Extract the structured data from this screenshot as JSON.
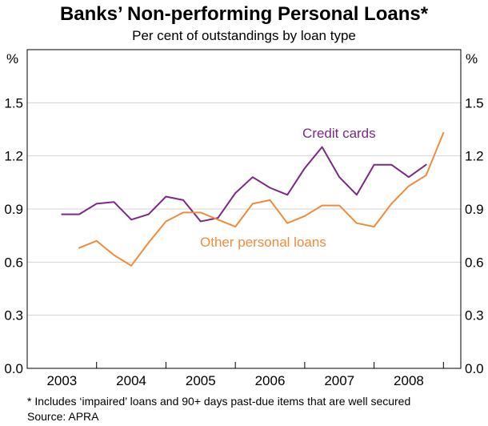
{
  "title": "Banks’ Non-performing Personal Loans*",
  "subtitle": "Per cent of outstandings by loan type",
  "footnote": "*   Includes ‘impaired’ loans and 90+ days past-due items that are well secured",
  "source": "Source: APRA",
  "colors": {
    "credit_cards": "#7b2a83",
    "other_personal_loans": "#ef8c3c",
    "grid": "#d4d4d4"
  },
  "chart_data": {
    "type": "line",
    "ylabel_left": "%",
    "ylabel_right": "%",
    "ylim": [
      0,
      1.8
    ],
    "yticks": [
      "0.0",
      "0.3",
      "0.6",
      "0.9",
      "1.2",
      "1.5"
    ],
    "ytick_values": [
      0,
      0.3,
      0.6,
      0.9,
      1.2,
      1.5
    ],
    "xlim": [
      2002.5,
      2008.75
    ],
    "x_tick_labels": [
      "2003",
      "2004",
      "2005",
      "2006",
      "2007",
      "2008"
    ],
    "x_tick_centers": [
      2003,
      2004,
      2005,
      2006,
      2007,
      2008
    ],
    "grid": "horizontal",
    "x": [
      2003.0,
      2003.25,
      2003.5,
      2003.75,
      2004.0,
      2004.25,
      2004.5,
      2004.75,
      2005.0,
      2005.25,
      2005.5,
      2005.75,
      2006.0,
      2006.25,
      2006.5,
      2006.75,
      2007.0,
      2007.25,
      2007.5,
      2007.75,
      2008.0,
      2008.25,
      2008.5
    ],
    "series": [
      {
        "name": "Credit cards",
        "color_key": "credit_cards",
        "values": [
          0.87,
          0.87,
          0.93,
          0.94,
          0.84,
          0.87,
          0.97,
          0.95,
          0.83,
          0.85,
          0.99,
          1.08,
          1.02,
          0.98,
          1.13,
          1.25,
          1.08,
          0.98,
          1.15,
          1.15,
          1.08,
          1.15,
          null
        ]
      },
      {
        "name": "Other personal loans",
        "color_key": "other_personal_loans",
        "values": [
          null,
          0.68,
          0.72,
          0.64,
          0.58,
          0.71,
          0.83,
          0.88,
          0.88,
          0.84,
          0.8,
          0.93,
          0.95,
          0.82,
          0.86,
          0.92,
          0.92,
          0.82,
          0.8,
          0.93,
          1.03,
          1.09,
          1.33
        ]
      }
    ],
    "annotations": [
      {
        "text": "Credit cards",
        "series": "Credit cards"
      },
      {
        "text": "Other personal loans",
        "series": "Other personal loans"
      }
    ]
  }
}
